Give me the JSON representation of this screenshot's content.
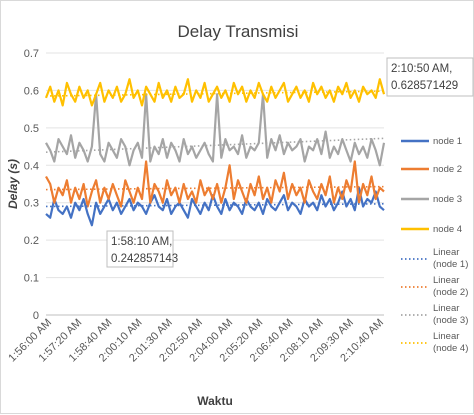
{
  "chart_data": {
    "type": "line",
    "title": "Delay Transmisi",
    "xlabel": "Waktu",
    "ylabel": "Delay (s)",
    "ylim": [
      0,
      0.7
    ],
    "yticks": [
      "0",
      "0.1",
      "0.2",
      "0.3",
      "0.4",
      "0.5",
      "0.6",
      "0.7"
    ],
    "x_tick_labels": [
      "1:56:00 AM",
      "1:57:20 AM",
      "1:58:40 AM",
      "2:00:10 AM",
      "2:01:30 AM",
      "2:02:50 AM",
      "2:04:00 AM",
      "2:05:20 AM",
      "2:06:40 AM",
      "2:08:10 AM",
      "2:09:30 AM",
      "2:10:40 AM"
    ],
    "grid": true,
    "legend_position": "right",
    "series": [
      {
        "name": "node 1",
        "color": "#4472C4",
        "style": "solid",
        "values": [
          0.27,
          0.26,
          0.31,
          0.28,
          0.27,
          0.29,
          0.26,
          0.3,
          0.28,
          0.31,
          0.27,
          0.24,
          0.3,
          0.27,
          0.29,
          0.31,
          0.28,
          0.3,
          0.27,
          0.29,
          0.31,
          0.28,
          0.3,
          0.29,
          0.27,
          0.3,
          0.32,
          0.29,
          0.28,
          0.31,
          0.27,
          0.29,
          0.3,
          0.28,
          0.26,
          0.31,
          0.29,
          0.27,
          0.3,
          0.28,
          0.32,
          0.29,
          0.27,
          0.31,
          0.28,
          0.3,
          0.29,
          0.27,
          0.31,
          0.29,
          0.28,
          0.3,
          0.27,
          0.31,
          0.29,
          0.28,
          0.3,
          0.32,
          0.28,
          0.3,
          0.29,
          0.27,
          0.31,
          0.29,
          0.3,
          0.28,
          0.32,
          0.29,
          0.31,
          0.28,
          0.3,
          0.33,
          0.29,
          0.31,
          0.28,
          0.34,
          0.29,
          0.31,
          0.3,
          0.33,
          0.29,
          0.28
        ]
      },
      {
        "name": "node 2",
        "color": "#ED7D31",
        "style": "solid",
        "values": [
          0.37,
          0.35,
          0.3,
          0.34,
          0.32,
          0.36,
          0.3,
          0.34,
          0.31,
          0.35,
          0.29,
          0.33,
          0.36,
          0.3,
          0.34,
          0.31,
          0.35,
          0.32,
          0.29,
          0.36,
          0.33,
          0.3,
          0.34,
          0.31,
          0.41,
          0.3,
          0.35,
          0.33,
          0.3,
          0.36,
          0.32,
          0.34,
          0.3,
          0.35,
          0.31,
          0.33,
          0.3,
          0.36,
          0.32,
          0.34,
          0.31,
          0.35,
          0.3,
          0.34,
          0.4,
          0.31,
          0.36,
          0.33,
          0.3,
          0.35,
          0.32,
          0.37,
          0.31,
          0.34,
          0.3,
          0.36,
          0.33,
          0.38,
          0.31,
          0.35,
          0.32,
          0.34,
          0.3,
          0.36,
          0.33,
          0.31,
          0.35,
          0.32,
          0.37,
          0.3,
          0.34,
          0.31,
          0.36,
          0.33,
          0.41,
          0.3,
          0.35,
          0.32,
          0.37,
          0.31,
          0.34,
          0.33
        ]
      },
      {
        "name": "node 3",
        "color": "#A5A5A5",
        "style": "solid",
        "values": [
          0.46,
          0.44,
          0.41,
          0.47,
          0.45,
          0.43,
          0.48,
          0.42,
          0.46,
          0.44,
          0.41,
          0.45,
          0.59,
          0.43,
          0.41,
          0.46,
          0.44,
          0.42,
          0.47,
          0.45,
          0.4,
          0.44,
          0.46,
          0.42,
          0.59,
          0.41,
          0.45,
          0.43,
          0.47,
          0.42,
          0.46,
          0.44,
          0.41,
          0.47,
          0.43,
          0.45,
          0.42,
          0.44,
          0.46,
          0.43,
          0.41,
          0.59,
          0.42,
          0.47,
          0.44,
          0.45,
          0.43,
          0.48,
          0.42,
          0.45,
          0.44,
          0.46,
          0.59,
          0.42,
          0.47,
          0.44,
          0.48,
          0.43,
          0.46,
          0.44,
          0.45,
          0.47,
          0.41,
          0.45,
          0.44,
          0.47,
          0.43,
          0.49,
          0.42,
          0.45,
          0.43,
          0.47,
          0.44,
          0.41,
          0.46,
          0.43,
          0.45,
          0.42,
          0.47,
          0.44,
          0.4,
          0.46
        ]
      },
      {
        "name": "node 4",
        "color": "#FFC000",
        "style": "solid",
        "values": [
          0.58,
          0.61,
          0.57,
          0.6,
          0.56,
          0.62,
          0.59,
          0.57,
          0.61,
          0.58,
          0.6,
          0.56,
          0.59,
          0.62,
          0.57,
          0.6,
          0.58,
          0.61,
          0.57,
          0.59,
          0.63,
          0.58,
          0.6,
          0.56,
          0.61,
          0.59,
          0.57,
          0.62,
          0.58,
          0.6,
          0.57,
          0.61,
          0.58,
          0.59,
          0.63,
          0.57,
          0.6,
          0.58,
          0.62,
          0.57,
          0.59,
          0.61,
          0.58,
          0.6,
          0.57,
          0.62,
          0.59,
          0.61,
          0.57,
          0.6,
          0.58,
          0.62,
          0.59,
          0.57,
          0.61,
          0.58,
          0.6,
          0.62,
          0.57,
          0.59,
          0.61,
          0.58,
          0.6,
          0.57,
          0.62,
          0.59,
          0.61,
          0.58,
          0.6,
          0.57,
          0.61,
          0.59,
          0.62,
          0.58,
          0.6,
          0.57,
          0.61,
          0.59,
          0.6,
          0.58,
          0.63,
          0.59
        ]
      },
      {
        "name": "Linear\n(node 1)",
        "color": "#4472C4",
        "style": "dotted",
        "values": [
          0.29,
          0.297
        ]
      },
      {
        "name": "Linear\n(node 2)",
        "color": "#ED7D31",
        "style": "dotted",
        "values": [
          0.335,
          0.343
        ]
      },
      {
        "name": "Linear\n(node 3)",
        "color": "#A5A5A5",
        "style": "dotted",
        "values": [
          0.435,
          0.472
        ]
      },
      {
        "name": "Linear\n(node 4)",
        "color": "#FFC000",
        "style": "dotted",
        "values": [
          0.585,
          0.598
        ]
      }
    ],
    "annotations": [
      {
        "lines": [
          "2:10:50 AM,",
          "0.628571429"
        ],
        "x_index": 78,
        "y": 0.628571429
      },
      {
        "lines": [
          "1:58:10 AM,",
          "0.242857143"
        ],
        "x_index": 11,
        "y": 0.242857143
      }
    ]
  }
}
